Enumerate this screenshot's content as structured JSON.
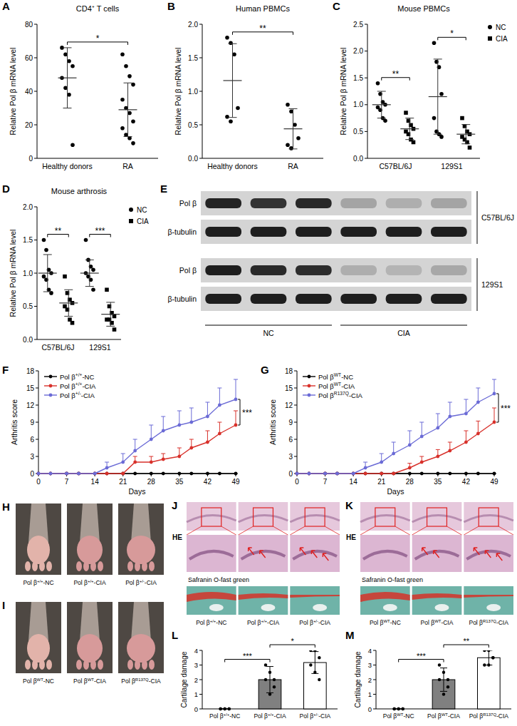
{
  "chart_data": [
    {
      "panel": "A",
      "type": "scatter",
      "title": "CD4⁺ T cells",
      "ylabel": "Relative Pol β mRNA level",
      "categories": [
        "Healthy donors",
        "RA"
      ],
      "ylim": [
        0,
        80
      ],
      "yticks": [
        0,
        20,
        40,
        60,
        80
      ],
      "series": [
        {
          "color": "#000000",
          "marker": "circle",
          "values": [
            [
              66,
              62,
              58,
              55,
              48,
              42,
              38,
              8
            ],
            [
              62,
              55,
              49,
              44,
              35,
              30,
              27,
              22,
              18,
              14,
              12,
              9
            ]
          ],
          "mean": [
            48,
            29
          ],
          "error": [
            18,
            16
          ]
        }
      ],
      "annotations": [
        {
          "text": "*",
          "categories": [
            0,
            1
          ]
        }
      ]
    },
    {
      "panel": "B",
      "type": "scatter",
      "title": "Human PBMCs",
      "ylabel": "Relative Pol β mRNA level",
      "categories": [
        "Healthy donors",
        "RA"
      ],
      "ylim": [
        0,
        2
      ],
      "yticks": [
        {
          "value": 0,
          "label": "0.0"
        },
        0.5,
        {
          "value": 1,
          "label": "1.0"
        },
        1.5,
        {
          "value": 2,
          "label": "2.0"
        }
      ],
      "series": [
        {
          "color": "#000000",
          "marker": "circle",
          "values": [
            [
              1.8,
              1.72,
              1.55,
              0.75,
              0.62,
              0.55
            ],
            [
              0.8,
              0.7,
              0.5,
              0.3,
              0.2,
              0.15
            ]
          ],
          "mean": [
            1.16,
            0.44
          ],
          "error": [
            0.55,
            0.3
          ]
        }
      ],
      "annotations": [
        {
          "text": "**",
          "categories": [
            0,
            1
          ]
        }
      ]
    },
    {
      "panel": "C",
      "type": "scatter",
      "title": "Mouse PBMCs",
      "ylabel": "Relative Pol β mRNA level",
      "categories": [
        "C57BL/6J",
        "129S1"
      ],
      "ylim": [
        0,
        2.5
      ],
      "yticks": [
        {
          "value": 0,
          "label": "0.0"
        },
        0.5,
        {
          "value": 1,
          "label": "1.0"
        },
        1.5,
        {
          "value": 2,
          "label": "2.0"
        },
        2.5
      ],
      "legend": "right",
      "series": [
        {
          "name": "NC",
          "color": "#000000",
          "marker": "circle",
          "values": [
            [
              1.4,
              1.2,
              1.05,
              1.0,
              0.95,
              0.9,
              0.75,
              0.7
            ],
            [
              2.15,
              1.8,
              1.7,
              1.2,
              0.75,
              0.5,
              0.45,
              0.4
            ]
          ],
          "mean": [
            1.0,
            1.15
          ],
          "error": [
            0.25,
            0.7
          ]
        },
        {
          "name": "CIA",
          "color": "#000000",
          "marker": "square",
          "values": [
            [
              0.85,
              0.7,
              0.62,
              0.55,
              0.5,
              0.45,
              0.35,
              0.3
            ],
            [
              0.75,
              0.6,
              0.5,
              0.45,
              0.4,
              0.35,
              0.3,
              0.2
            ]
          ],
          "mean": [
            0.55,
            0.45
          ],
          "error": [
            0.2,
            0.18
          ]
        }
      ],
      "annotations": [
        {
          "text": "**",
          "category": 0
        },
        {
          "text": "*",
          "category": 1
        }
      ]
    },
    {
      "panel": "D",
      "type": "scatter",
      "title": "Mouse arthrosis",
      "ylabel": "Relative Pol β mRNA level",
      "categories": [
        "C57BL/6J",
        "129S1"
      ],
      "ylim": [
        0,
        2
      ],
      "yticks": [
        {
          "value": 0,
          "label": "0.0"
        },
        0.5,
        {
          "value": 1,
          "label": "1.0"
        },
        1.5,
        {
          "value": 2,
          "label": "2.0"
        }
      ],
      "legend": "right",
      "series": [
        {
          "name": "NC",
          "color": "#000000",
          "marker": "circle",
          "values": [
            [
              1.5,
              1.35,
              1.05,
              1.0,
              0.95,
              0.9,
              0.75,
              0.7
            ],
            [
              1.5,
              1.2,
              1.1,
              1.05,
              1.0,
              0.95,
              0.9,
              0.75
            ]
          ],
          "mean": [
            1.0,
            1.0
          ],
          "error": [
            0.28,
            0.2
          ]
        },
        {
          "name": "CIA",
          "color": "#000000",
          "marker": "square",
          "values": [
            [
              0.95,
              0.7,
              0.6,
              0.55,
              0.5,
              0.45,
              0.3,
              0.25
            ],
            [
              0.75,
              0.5,
              0.4,
              0.35,
              0.3,
              0.3,
              0.25,
              0.15
            ]
          ],
          "mean": [
            0.55,
            0.38
          ],
          "error": [
            0.2,
            0.18
          ]
        }
      ],
      "annotations": [
        {
          "text": "**",
          "category": 0
        },
        {
          "text": "***",
          "category": 1
        }
      ]
    },
    {
      "panel": "F",
      "type": "line",
      "ylabel": "Arthritis score",
      "xlabel": "Days",
      "x": [
        0,
        3,
        7,
        10,
        14,
        17,
        21,
        24,
        28,
        31,
        35,
        38,
        42,
        45,
        49
      ],
      "xlim": [
        0,
        49
      ],
      "xticks": [
        0,
        7,
        14,
        21,
        28,
        35,
        42,
        49
      ],
      "ylim": [
        0,
        18
      ],
      "yticks": [
        0,
        3,
        6,
        9,
        12,
        15,
        18
      ],
      "legend": "upper left",
      "series": [
        {
          "name": "Pol β+/+-NC",
          "color": "#000000",
          "marker": "circle",
          "values": [
            0,
            0,
            0,
            0,
            0,
            0,
            0,
            0,
            0,
            0,
            0,
            0,
            0,
            0,
            0
          ],
          "error": [
            0,
            0,
            0,
            0,
            0,
            0,
            0,
            0,
            0,
            0,
            0,
            0,
            0,
            0,
            0
          ]
        },
        {
          "name": "Pol β+/+-CIA",
          "color": "#d8312b",
          "marker": "circle",
          "values": [
            0,
            0,
            0,
            0,
            0,
            0,
            0,
            2,
            2,
            2.5,
            3,
            4.5,
            5.5,
            7,
            8.5
          ],
          "error": [
            0,
            0,
            0,
            0,
            0,
            0,
            0,
            1,
            1,
            1,
            1.5,
            1.5,
            2,
            2,
            2.5
          ]
        },
        {
          "name": "Pol β+/--CIA",
          "color": "#6b6bd6",
          "marker": "circle",
          "values": [
            0,
            0,
            0,
            0,
            0,
            1,
            2,
            4,
            6,
            7.5,
            8.5,
            9,
            10,
            12,
            13
          ],
          "error": [
            0,
            0,
            0,
            0,
            0,
            1,
            1.5,
            2,
            2.5,
            2.5,
            2.5,
            2.5,
            2.5,
            3,
            3.5
          ]
        }
      ],
      "annotations": [
        {
          "text": "***",
          "series": [
            1,
            2
          ]
        }
      ]
    },
    {
      "panel": "G",
      "type": "line",
      "ylabel": "Arthritis score",
      "xlabel": "Days",
      "x": [
        0,
        3,
        7,
        10,
        14,
        17,
        21,
        24,
        28,
        31,
        35,
        38,
        42,
        45,
        49
      ],
      "xlim": [
        0,
        49
      ],
      "xticks": [
        0,
        7,
        14,
        21,
        28,
        35,
        42,
        49
      ],
      "ylim": [
        0,
        18
      ],
      "yticks": [
        0,
        3,
        6,
        9,
        12,
        15,
        18
      ],
      "legend": "upper left",
      "series": [
        {
          "name": "Pol βWT-NC",
          "color": "#000000",
          "marker": "circle",
          "values": [
            0,
            0,
            0,
            0,
            0,
            0,
            0,
            0,
            0,
            0,
            0,
            0,
            0,
            0,
            0
          ],
          "error": [
            0,
            0,
            0,
            0,
            0,
            0,
            0,
            0,
            0,
            0,
            0,
            0,
            0,
            0,
            0
          ]
        },
        {
          "name": "Pol βWT-CIA",
          "color": "#d8312b",
          "marker": "circle",
          "values": [
            0,
            0,
            0,
            0,
            0,
            0,
            0,
            0,
            1,
            2,
            3,
            4,
            5.5,
            7,
            9
          ],
          "error": [
            0,
            0,
            0,
            0,
            0,
            0,
            0,
            0,
            0.8,
            1,
            1.2,
            1.5,
            2,
            2.2,
            2.5
          ]
        },
        {
          "name": "Pol βR137Q-CIA",
          "color": "#6b6bd6",
          "marker": "circle",
          "values": [
            0,
            0,
            0,
            0,
            0,
            1,
            2,
            3.5,
            5,
            6.5,
            8,
            10,
            10.5,
            12.5,
            14
          ],
          "error": [
            0,
            0,
            0,
            0,
            0,
            1,
            1.5,
            2,
            2.5,
            2.5,
            2.5,
            2.5,
            2.5,
            2.5,
            2.5
          ]
        }
      ],
      "annotations": [
        {
          "text": "***",
          "series": [
            1,
            2
          ]
        }
      ]
    },
    {
      "panel": "L",
      "type": "bar",
      "ylabel": "Cartilage damage",
      "categories": [
        "Pol β+/+-NC",
        "Pol β+/+-CIA",
        "Pol β+/--CIA"
      ],
      "values": [
        0,
        2,
        3.17
      ],
      "error": [
        0,
        0.9,
        0.75
      ],
      "points": [
        [
          0,
          0,
          0,
          0,
          0,
          0
        ],
        [
          3,
          2.5,
          2,
          2,
          1,
          1.5
        ],
        [
          4,
          4,
          3.5,
          3,
          2.5,
          2
        ]
      ],
      "colors": [
        "#ffffff",
        "#808080",
        "#ffffff"
      ],
      "ylim": [
        0,
        4
      ],
      "yticks": [
        0,
        1,
        2,
        3,
        4
      ],
      "annotations": [
        {
          "text": "***",
          "categories": [
            0,
            1
          ]
        },
        {
          "text": "*",
          "categories": [
            1,
            2
          ]
        }
      ]
    },
    {
      "panel": "M",
      "type": "bar",
      "ylabel": "Cartilage damage",
      "categories": [
        "Pol βWT-NC",
        "Pol βWT-CIA",
        "Pol βR137Q-CIA"
      ],
      "values": [
        0,
        2,
        3.5
      ],
      "error": [
        0,
        0.8,
        0.5
      ],
      "points": [
        [
          0,
          0,
          0,
          0,
          0,
          0
        ],
        [
          3,
          2.5,
          2,
          2,
          1,
          1.5
        ],
        [
          4,
          4,
          3.5,
          3,
          3,
          3.5
        ]
      ],
      "colors": [
        "#ffffff",
        "#808080",
        "#ffffff"
      ],
      "ylim": [
        0,
        4
      ],
      "yticks": [
        0,
        1,
        2,
        3,
        4
      ],
      "annotations": [
        {
          "text": "***",
          "categories": [
            0,
            1
          ]
        },
        {
          "text": "**",
          "categories": [
            1,
            2
          ]
        }
      ]
    }
  ],
  "blot": {
    "panel": "E",
    "groups": [
      "NC",
      "CIA"
    ],
    "strains": [
      {
        "label": "C57BL/6J",
        "rows": [
          {
            "label": "Pol β",
            "intensity": [
              0.92,
              0.85,
              0.9,
              0.3,
              0.25,
              0.3
            ]
          },
          {
            "label": "β-tubulin",
            "intensity": [
              0.95,
              0.95,
              0.95,
              0.95,
              0.95,
              0.95
            ]
          }
        ]
      },
      {
        "label": "129S1",
        "rows": [
          {
            "label": "Pol β",
            "intensity": [
              0.95,
              0.9,
              0.88,
              0.25,
              0.22,
              0.28
            ]
          },
          {
            "label": "β-tubulin",
            "intensity": [
              0.95,
              0.95,
              0.95,
              0.95,
              0.95,
              0.95
            ]
          }
        ]
      }
    ]
  },
  "photos": [
    {
      "panel": "H",
      "labels": [
        "Pol β+/+-NC",
        "Pol β+/+-CIA",
        "Pol β+/--CIA"
      ]
    },
    {
      "panel": "I",
      "labels": [
        "Pol βWT-NC",
        "Pol βWT-CIA",
        "Pol βR137Q-CIA"
      ]
    }
  ],
  "histology": [
    {
      "panel": "J",
      "stains": [
        "HE",
        "Safranin O-fast green"
      ],
      "labels": [
        "Pol β+/+-NC",
        "Pol β+/+-CIA",
        "Pol β+/--CIA"
      ]
    },
    {
      "panel": "K",
      "stains": [
        "HE",
        "Safranin O-fast green"
      ],
      "labels": [
        "Pol βWT-NC",
        "Pol βWT-CIA",
        "Pol βR137Q-CIA"
      ]
    }
  ]
}
